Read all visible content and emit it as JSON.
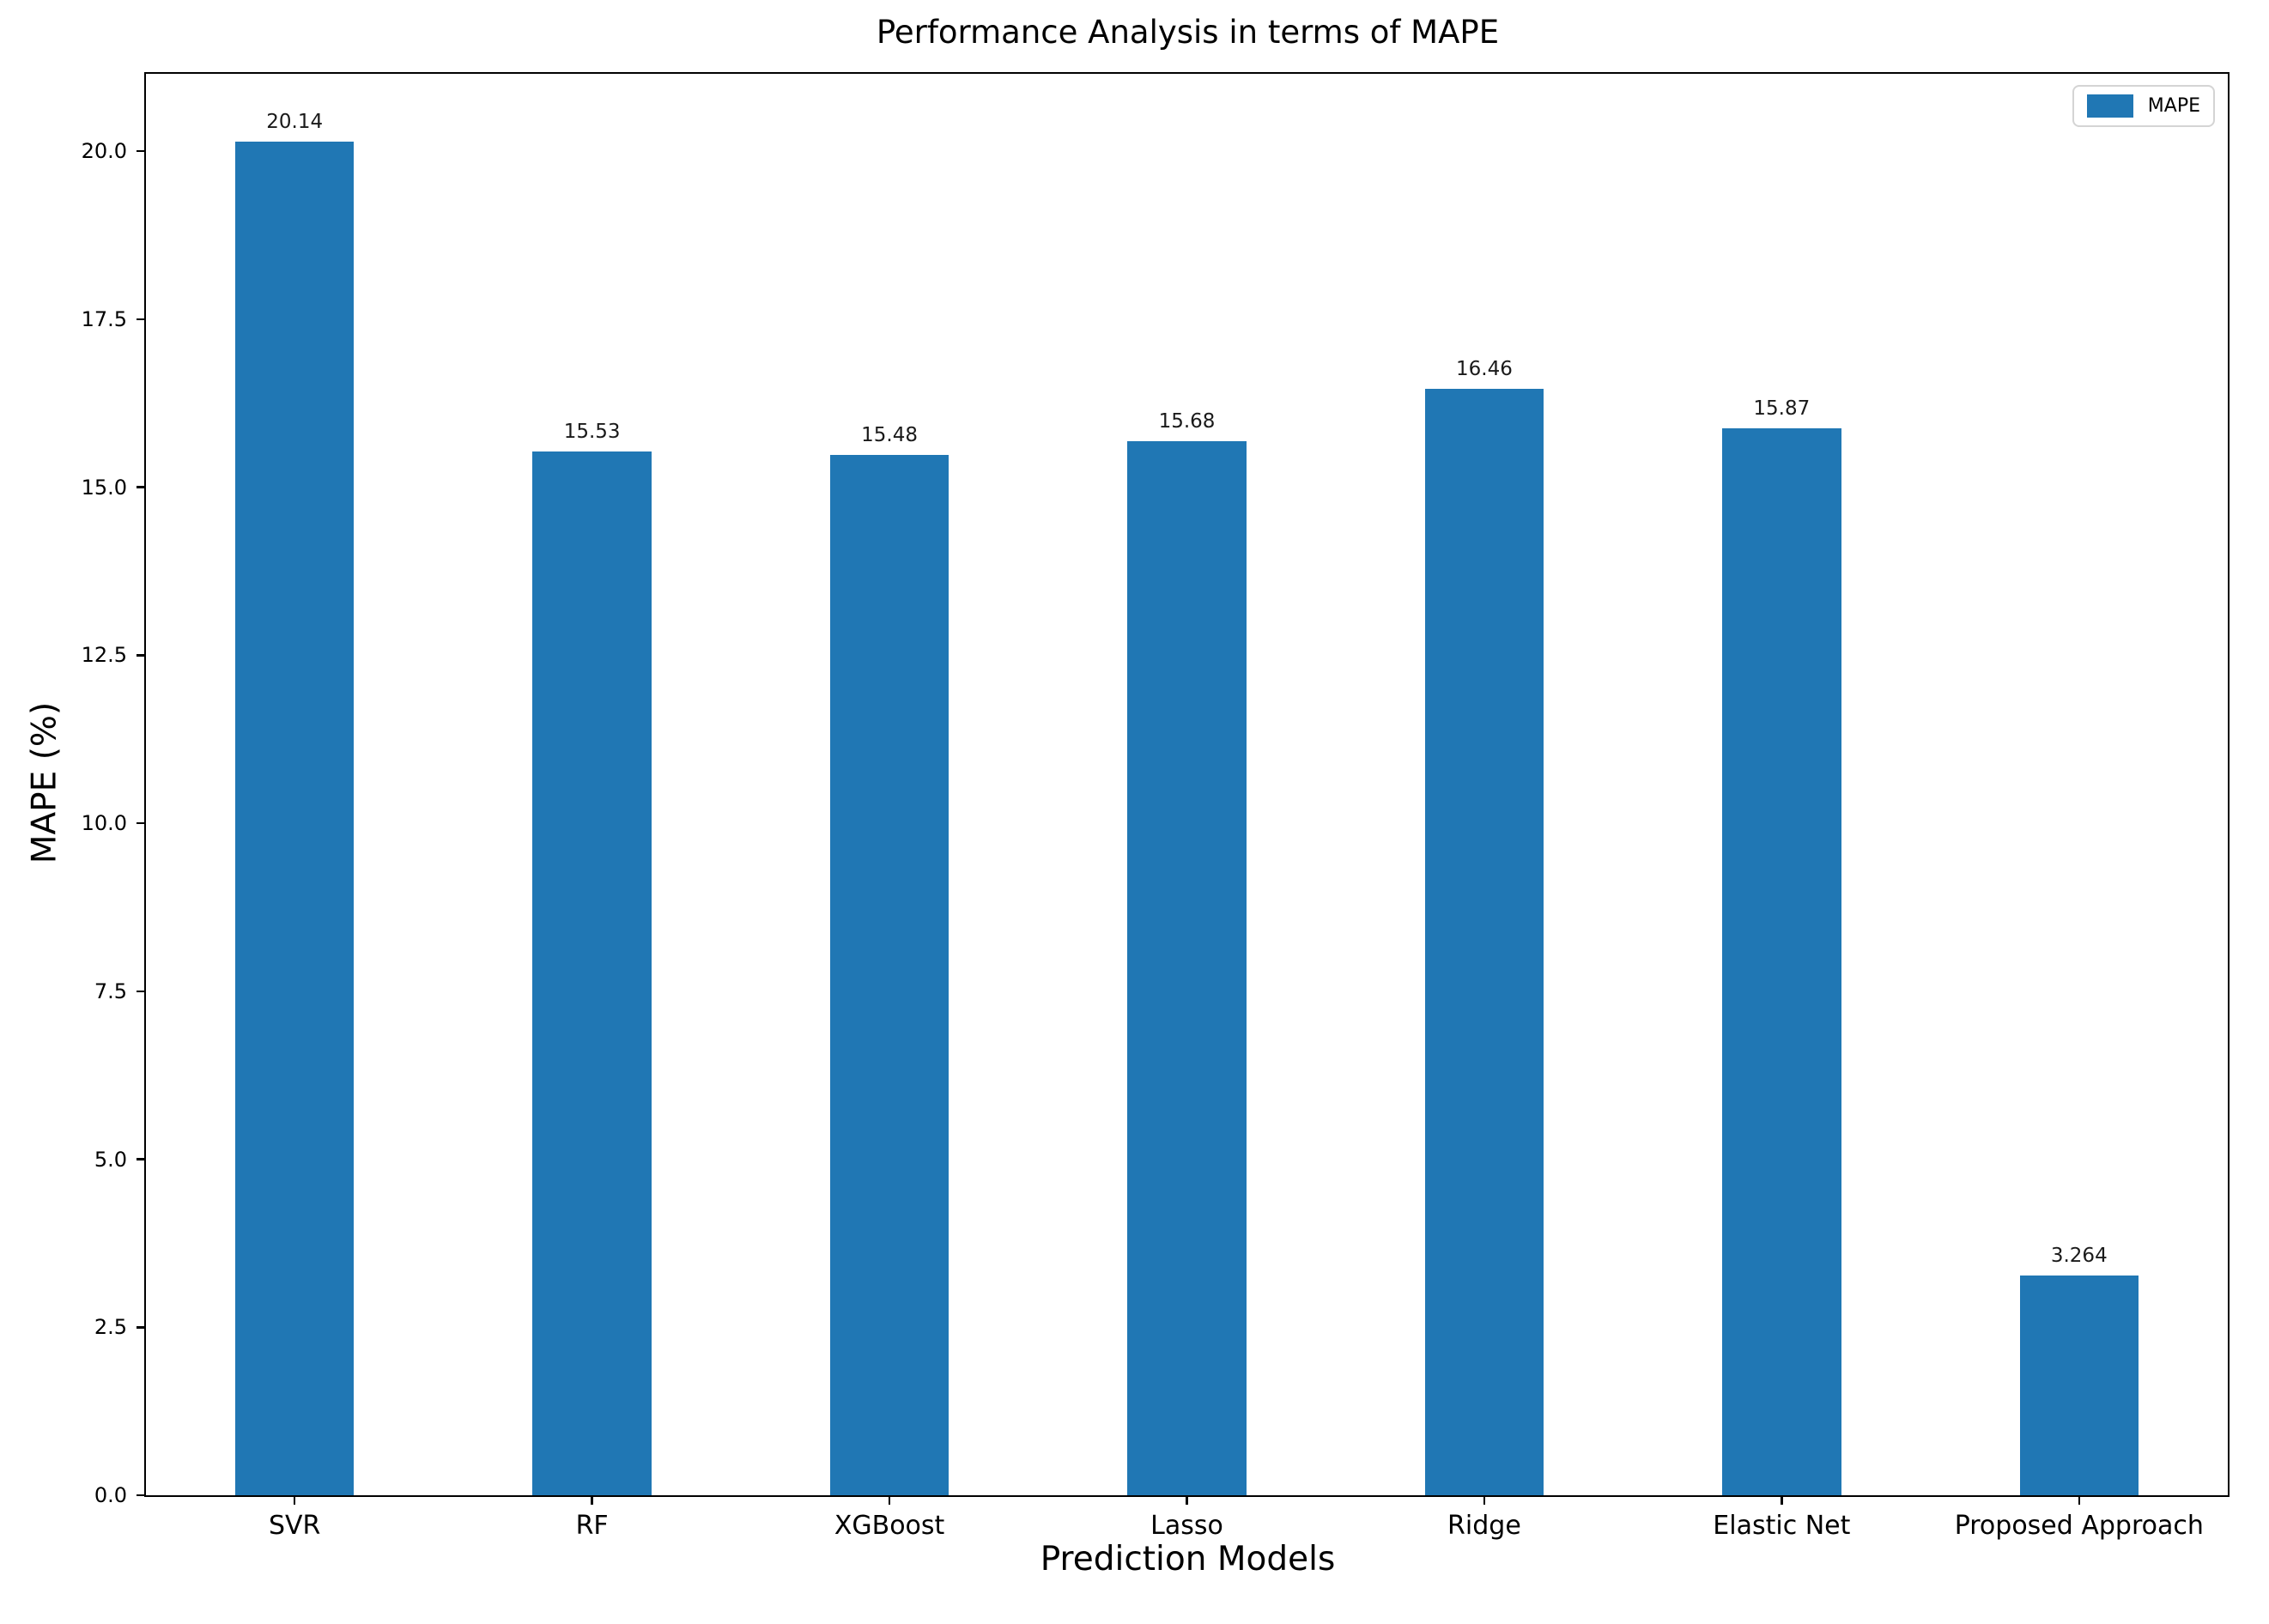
{
  "chart_data": {
    "type": "bar",
    "title": "Performance Analysis in terms of MAPE",
    "xlabel": "Prediction Models",
    "ylabel": "MAPE (%)",
    "categories": [
      "SVR",
      "RF",
      "XGBoost",
      "Lasso",
      "Ridge",
      "Elastic Net",
      "Proposed Approach"
    ],
    "series": [
      {
        "name": "MAPE",
        "color": "#2077b4",
        "values": [
          20.14,
          15.53,
          15.48,
          15.68,
          16.46,
          15.87,
          3.264
        ]
      }
    ],
    "value_labels": [
      "20.14",
      "15.53",
      "15.48",
      "15.68",
      "16.46",
      "15.87",
      "3.264"
    ],
    "ylim": [
      0,
      21.15
    ],
    "yticks": [
      0.0,
      2.5,
      5.0,
      7.5,
      10.0,
      12.5,
      15.0,
      17.5,
      20.0
    ],
    "ytick_labels": [
      "0.0",
      "2.5",
      "5.0",
      "7.5",
      "10.0",
      "12.5",
      "15.0",
      "17.5",
      "20.0"
    ],
    "bar_width_fraction": 0.4,
    "grid": false,
    "legend": {
      "position": "upper right",
      "entries": [
        "MAPE"
      ]
    }
  },
  "colors": {
    "bar": "#2077b4",
    "axis": "#000000",
    "background": "#ffffff",
    "legend_border": "#d4d4d4"
  }
}
